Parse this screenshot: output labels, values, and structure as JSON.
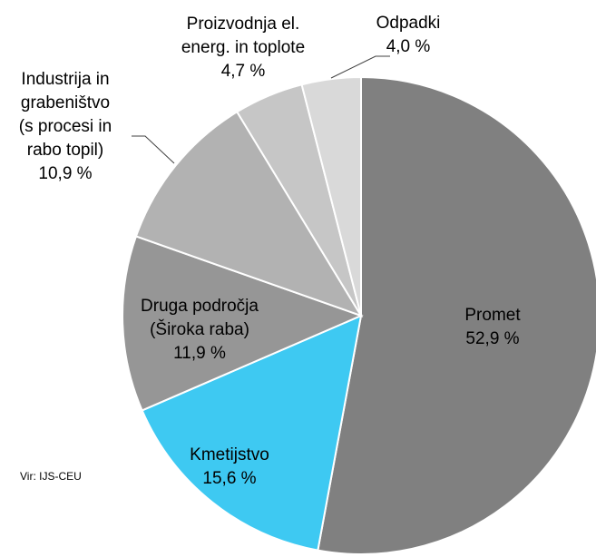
{
  "chart_data": {
    "type": "pie",
    "categories": [
      "Promet",
      "Kmetijstvo",
      "Druga področja\n(Široka raba)",
      "Industrija in\ngrabeništvo\n(s procesi in\nrabo topil)",
      "Proizvodnja el.\nenerg. in toplote",
      "Odpadki"
    ],
    "values": [
      52.9,
      15.6,
      11.9,
      10.9,
      4.7,
      4.0
    ],
    "value_labels": [
      "52,9 %",
      "15,6 %",
      "11,9 %",
      "10,9 %",
      "4,7 %",
      "4,0 %"
    ],
    "colors": [
      "#808080",
      "#3ec9f2",
      "#969696",
      "#b2b2b2",
      "#c6c6c6",
      "#d9d9d9"
    ],
    "source": "Vir: IJS-CEU"
  }
}
